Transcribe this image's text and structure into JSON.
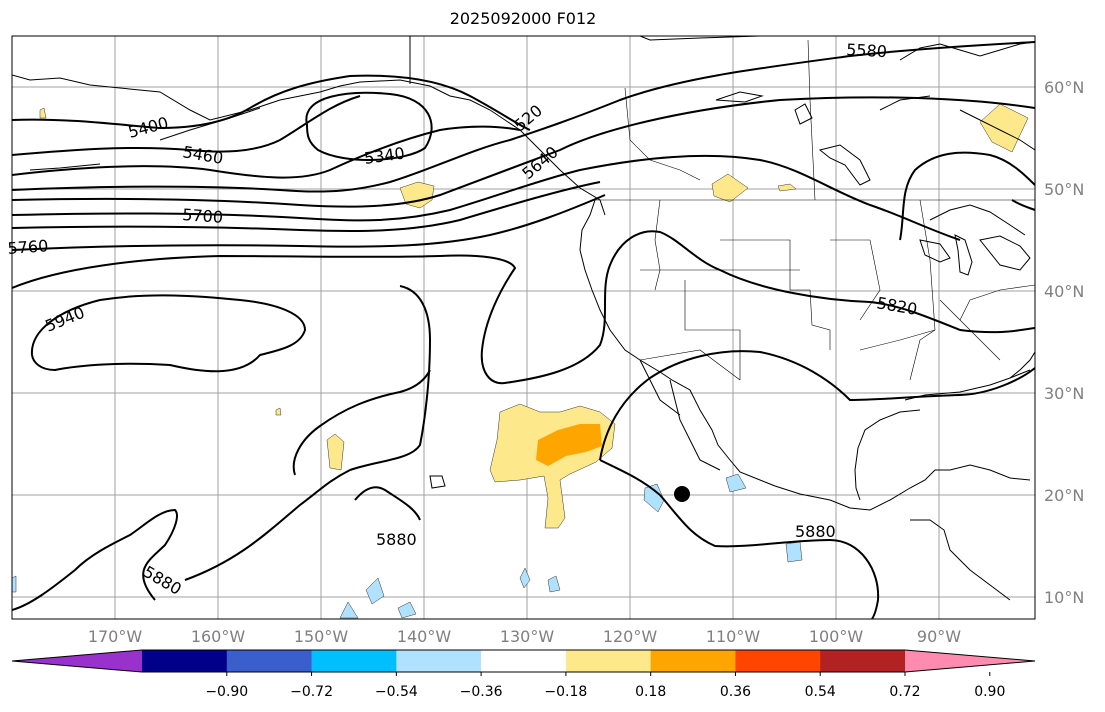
{
  "title": "2025092000 F012",
  "longitude_labels": [
    "170°W",
    "160°W",
    "150°W",
    "140°W",
    "130°W",
    "120°W",
    "110°W",
    "100°W",
    "90°W"
  ],
  "latitude_labels": [
    "60°N",
    "50°N",
    "40°N",
    "30°N",
    "20°N",
    "10°N"
  ],
  "contour_labels": [
    "5400",
    "5340",
    "5460",
    "5580",
    "520",
    "5640",
    "5700",
    "5760",
    "5940",
    "5820",
    "5880",
    "5880",
    "5880"
  ],
  "colorbar": {
    "ticks": [
      "−0.90",
      "−0.72",
      "−0.54",
      "−0.36",
      "−0.18",
      "0.18",
      "0.36",
      "0.54",
      "0.72",
      "0.90"
    ],
    "colors": [
      "#9932cc",
      "#00008b",
      "#3a5fcd",
      "#00bfff",
      "#b0e2ff",
      "#ffffff",
      "#fde98c",
      "#ffa500",
      "#ff4500",
      "#b22222",
      "#ff8cb0"
    ]
  },
  "marker": "storm-center-dot"
}
